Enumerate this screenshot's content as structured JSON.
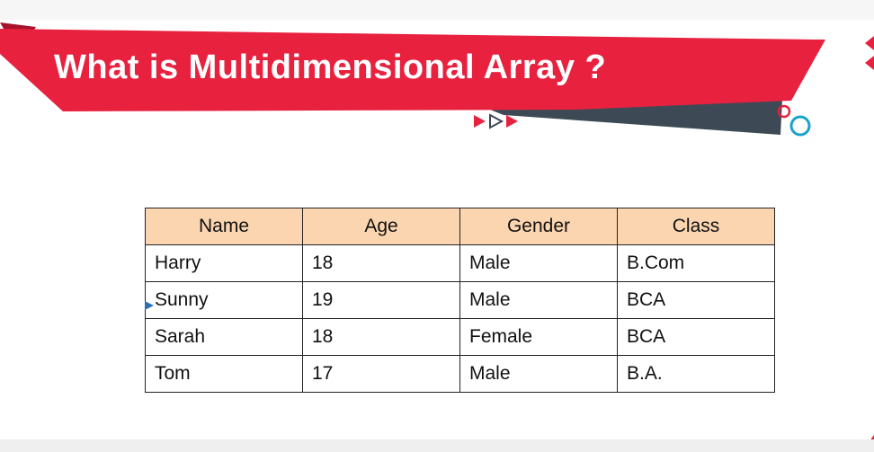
{
  "slide": {
    "title": "What is Multidimensional Array ?"
  },
  "colors": {
    "banner_red": "#e8213f",
    "banner_dark_red": "#a7142a",
    "banner_slate": "#3d4a55",
    "header_fill": "#fbd5b0",
    "cyan_circle": "#1aa3c9"
  },
  "icons": {
    "arrows": "play-arrows-icon",
    "circles": "circles-decoration-icon",
    "cursor": "mouse-pointer-icon"
  },
  "table": {
    "headers": [
      "Name",
      "Age",
      "Gender",
      "Class"
    ],
    "rows": [
      [
        "Harry",
        "18",
        "Male",
        "B.Com"
      ],
      [
        "Sunny",
        "19",
        "Male",
        "BCA"
      ],
      [
        "Sarah",
        "18",
        "Female",
        "BCA"
      ],
      [
        "Tom",
        "17",
        "Male",
        "B.A."
      ]
    ]
  }
}
